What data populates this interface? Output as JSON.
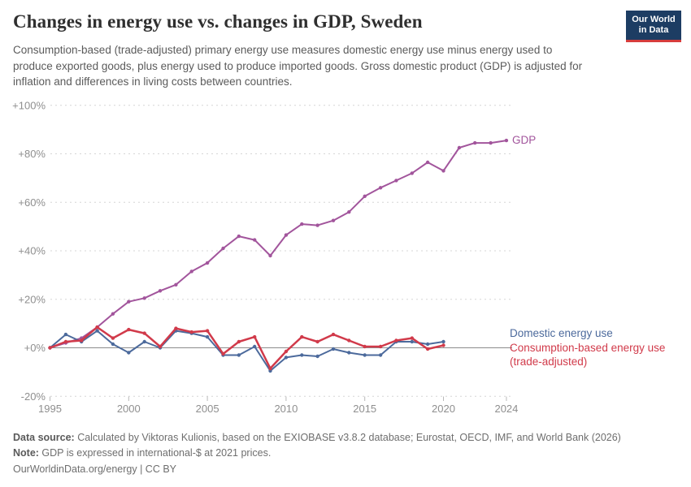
{
  "header": {
    "title": "Changes in energy use vs. changes in GDP, Sweden",
    "subtitle": "Consumption-based (trade-adjusted) primary energy use measures domestic energy use minus energy used to produce exported goods, plus energy used to produce imported goods. Gross domestic product (GDP) is adjusted for inflation and differences in living costs between countries.",
    "logo": {
      "line1": "Our World",
      "line2": "in Data"
    }
  },
  "colors": {
    "gdp": "#a2559c",
    "domestic": "#4c6a9c",
    "consumption": "#d13a4a",
    "grid": "#d6d6d6",
    "zero_line": "#8c8c8c",
    "tick_text": "#8f8f8f",
    "logo_navy": "#1d3d63",
    "logo_red": "#d73c3c"
  },
  "chart_data": {
    "type": "line",
    "title": "Changes in energy use vs. changes in GDP, Sweden",
    "xlabel": "",
    "ylabel": "",
    "xlim": [
      1995,
      2024.4
    ],
    "ylim": [
      -20,
      100
    ],
    "grid": "dashed-horizontal",
    "legend_position": "end-of-line-labels",
    "x": [
      1995,
      1996,
      1997,
      1998,
      1999,
      2000,
      2001,
      2002,
      2003,
      2004,
      2005,
      2006,
      2007,
      2008,
      2009,
      2010,
      2011,
      2012,
      2013,
      2014,
      2015,
      2016,
      2017,
      2018,
      2019,
      2020,
      2021,
      2022,
      2023,
      2024
    ],
    "x_ticks": [
      1995,
      2000,
      2005,
      2010,
      2015,
      2020,
      2024
    ],
    "y_ticks": [
      {
        "value": 100,
        "label": "+100%"
      },
      {
        "value": 80,
        "label": "+80%"
      },
      {
        "value": 60,
        "label": "+60%"
      },
      {
        "value": 40,
        "label": "+40%"
      },
      {
        "value": 20,
        "label": "+20%"
      },
      {
        "value": 0,
        "label": "+0%"
      },
      {
        "value": -20,
        "label": "-20%"
      }
    ],
    "series": [
      {
        "name": "GDP",
        "color": "#a2559c",
        "width": 2,
        "values": [
          0,
          2,
          4,
          8.5,
          14,
          19,
          20.5,
          23.5,
          26,
          31.5,
          35,
          41,
          46,
          44.5,
          38,
          46.5,
          51,
          50.5,
          52.5,
          56,
          62.5,
          66,
          69,
          72,
          76.5,
          73,
          82.5,
          84.5,
          84.5,
          85.5
        ]
      },
      {
        "name": "Domestic energy use",
        "color": "#4c6a9c",
        "width": 2,
        "values": [
          0,
          5.5,
          2.5,
          7,
          1.5,
          -2,
          2.5,
          0,
          7,
          6,
          4.5,
          -3,
          -3,
          0.5,
          -9.5,
          -4,
          -3,
          -3.5,
          -0.5,
          -2,
          -3,
          -3,
          2.5,
          2.5,
          1.5,
          2.5,
          null,
          null,
          null,
          null
        ]
      },
      {
        "name": "Consumption-based energy use (trade-adjusted)",
        "color": "#d13a4a",
        "width": 2.5,
        "values": [
          0,
          2.5,
          3,
          8.5,
          4,
          7.5,
          6,
          0.5,
          8,
          6.5,
          7,
          -2.5,
          2.5,
          4.5,
          -8.5,
          -1.5,
          4.5,
          2.5,
          5.5,
          3,
          0.5,
          0.5,
          3,
          4,
          -0.5,
          1,
          null,
          null,
          null,
          null
        ]
      }
    ]
  },
  "annotations": {
    "gdp_label": "GDP",
    "domestic_label": "Domestic energy use",
    "consumption_label_line1": "Consumption-based energy use",
    "consumption_label_line2": "(trade-adjusted)"
  },
  "footer": {
    "data_source_label": "Data source:",
    "data_source_text": " Calculated by Viktoras Kulionis, based on the EXIOBASE v3.8.2 database; Eurostat, OECD, IMF, and World Bank (2026)",
    "note_label": "Note:",
    "note_text": " GDP is expressed in international-$ at 2021 prices.",
    "license_text": "OurWorldinData.org/energy | CC BY"
  }
}
